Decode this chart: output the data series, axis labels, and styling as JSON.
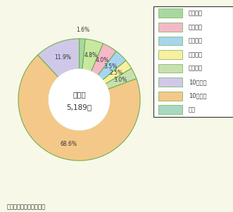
{
  "slices": [
    {
      "label": "１年未満",
      "pct": 1.6,
      "color": "#a8d8a0"
    },
    {
      "label": "２年未満",
      "pct": 4.8,
      "color": "#c8e8a0"
    },
    {
      "label": "３年未満",
      "pct": 4.0,
      "color": "#f4b8c8"
    },
    {
      "label": "４年未満",
      "pct": 3.5,
      "color": "#a8d4f0"
    },
    {
      "label": "５年未満",
      "pct": 2.5,
      "color": "#f8f0a0"
    },
    {
      "label": "10年未満",
      "pct": 3.0,
      "color": "#c8e0b0"
    },
    {
      "label": "10年以上",
      "pct": 68.6,
      "color": "#f4c888"
    },
    {
      "label": "不明",
      "pct": 11.9,
      "color": "#d0c8e8"
    }
  ],
  "center_text1": "合　計",
  "center_text2": "5,189件",
  "note": "注　警察庁資料による。",
  "bg_color": "#f8f8e8",
  "legend_labels": [
    "１年未満",
    "２年未満",
    "３年未満",
    "４年未満",
    "５年未満",
    "10年未満",
    "10年以上",
    "不明"
  ],
  "legend_colors": [
    "#a8d8a0",
    "#f4b8c8",
    "#a8d4f0",
    "#f8f0a0",
    "#c8e0b0",
    "#d0c8e8",
    "#f4c888",
    "#a8d8c0"
  ],
  "pct_labels": [
    "1.6%",
    "4.8%",
    "4.0%",
    "3.5%",
    "2.5%",
    "3.0%",
    "68.6%",
    "11.9%"
  ],
  "edge_color": "#70b050",
  "donut_ratio": 0.5
}
